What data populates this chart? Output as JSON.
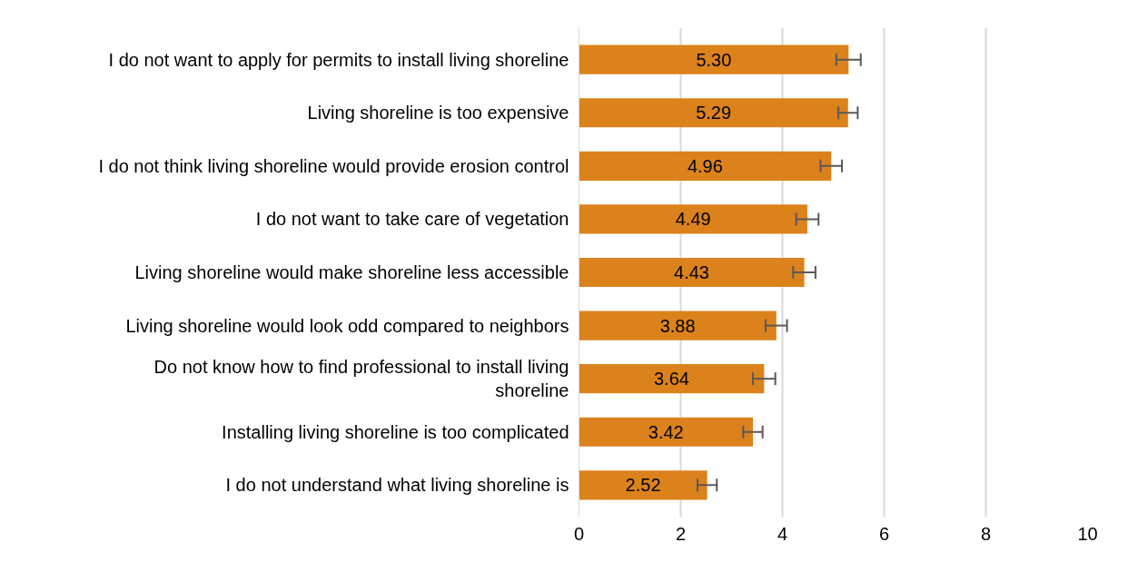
{
  "chart_data": {
    "type": "bar",
    "orientation": "horizontal",
    "categories": [
      "I do not want to apply for permits to install living shoreline",
      "Living shoreline is too expensive",
      "I do not think living shoreline would provide erosion control",
      "I do not want to take care of vegetation",
      "Living shoreline would make shoreline less accessible",
      "Living shoreline would look odd compared to neighbors",
      "Do not know how to find professional to install living shoreline",
      "Installing living shoreline is too complicated",
      "I do not understand what living shoreline is"
    ],
    "values": [
      5.3,
      5.29,
      4.96,
      4.49,
      4.43,
      3.88,
      3.64,
      3.42,
      2.52
    ],
    "value_labels": [
      "5.30",
      "5.29",
      "4.96",
      "4.49",
      "4.43",
      "3.88",
      "3.64",
      "3.42",
      "2.52"
    ],
    "errors": [
      0.24,
      0.19,
      0.21,
      0.22,
      0.22,
      0.21,
      0.22,
      0.19,
      0.19
    ],
    "color": "#dc821c",
    "xlim": [
      0,
      10
    ],
    "xticks": [
      0,
      2,
      4,
      6,
      8,
      10
    ],
    "grid": "x"
  }
}
